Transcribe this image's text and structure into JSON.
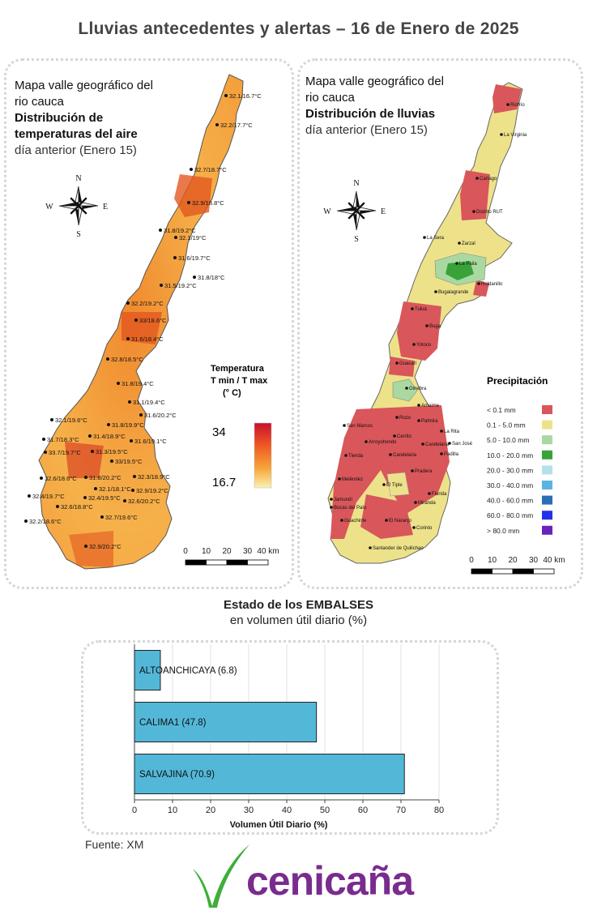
{
  "title": "Lluvias antecedentes y alertas – 16 de Enero de 2025",
  "left_panel": {
    "line1": "Mapa valle geográfico del",
    "line2": "rio cauca",
    "line3": "Distribución de",
    "line4": "temperaturas del aire",
    "line5": "día anterior (Enero 15)",
    "legend_title1": "Temperatura",
    "legend_title2": "T min / T max",
    "legend_title3": "(° C)",
    "legend_max": "34",
    "legend_min": "16.7",
    "scale_labels": [
      "0",
      "10",
      "20",
      "30",
      "40 km"
    ],
    "stations": [
      "32.1/16.7°C",
      "32.2/17.7°C",
      "32.7/18.7°C",
      "32.9/18.8°C",
      "31.8/19.2°C",
      "32.1/19°C",
      "31.6/19.7°C",
      "31.8/18°C",
      "31.5/19.2°C",
      "32.2/19.2°C",
      "33/18.6°C",
      "31.6/18.4°C",
      "32.8/18.5°C",
      "31.8/19.4°C",
      "31.1/19.4°C",
      "31.6/20.2°C",
      "32.1/19.6°C",
      "31.8/19.9°C",
      "31.7/18.3°C",
      "31.4/18.9°C",
      "31.6/19.1°C",
      "33.7/19.7°C",
      "31.3/19.5°C",
      "33/19.5°C",
      "32.6/18.6°C",
      "31.8/20.2°C",
      "32.3/18.9°C",
      "32.4/19.7°C",
      "32.1/18.1°C",
      "32.9/19.2°C",
      "32.6/18.8°C",
      "32.4/19.5°C",
      "32.6/20.2°C",
      "32.7/19.6°C",
      "32.2/18.6°C",
      "32.9/20.2°C"
    ]
  },
  "right_panel": {
    "line1": "Mapa valle geográfico del",
    "line2": "rio cauca",
    "line3": "Distribución de lluvias",
    "line4": "día anterior (Enero  15)",
    "legend_title": "Precipitación",
    "legend_items": [
      {
        "label": "< 0.1 mm",
        "color": "#d9565a"
      },
      {
        "label": "0.1 - 5.0 mm",
        "color": "#ede28a"
      },
      {
        "label": "5.0 - 10.0 mm",
        "color": "#a9d9a0"
      },
      {
        "label": "10.0 - 20.0 mm",
        "color": "#39a33a"
      },
      {
        "label": "20.0 - 30.0 mm",
        "color": "#b5e0ec"
      },
      {
        "label": "30.0 - 40.0 mm",
        "color": "#5bb3e4"
      },
      {
        "label": "40.0 - 60.0 mm",
        "color": "#2b6fb8"
      },
      {
        "label": "60.0 - 80.0 mm",
        "color": "#2531e6"
      },
      {
        "label": "> 80.0 mm",
        "color": "#6a22b8"
      }
    ],
    "scale_labels": [
      "0",
      "10",
      "20",
      "30",
      "40 km"
    ],
    "places": [
      "Riofrío",
      "La Virginia",
      "Cartago",
      "Distrito RUT",
      "La Sera",
      "Zarzal",
      "La Paila",
      "Roldanillo",
      "Bugalagrande",
      "Tuluá",
      "Buga",
      "Yotoco",
      "Guacarí",
      "Ginebra",
      "Amaime",
      "San Marcos",
      "Palmira",
      "La Rita",
      "Pradera",
      "San José",
      "Candelaria",
      "Florida",
      "Meléndez",
      "El Tiple",
      "Jamundí",
      "Bocas del Palo",
      "Guachinte",
      "Miranda",
      "Corinto",
      "Santander de Quilichao",
      "Rozo",
      "Cerrito",
      "Arroyohondo",
      "Candelaria",
      "Tienda",
      "El Naranjo",
      "Padilla"
    ]
  },
  "compass": {
    "n": "N",
    "s": "S",
    "e": "E",
    "w": "W"
  },
  "embalses": {
    "title": "Estado de los EMBALSES",
    "subtitle": "en volumen útil diario (%)"
  },
  "chart_data": {
    "type": "bar",
    "orientation": "horizontal",
    "categories": [
      "ALTOANCHICAYA",
      "CALIMA1",
      "SALVAJINA"
    ],
    "values": [
      6.8,
      47.8,
      70.9
    ],
    "bar_labels": [
      "ALTOANCHICAYA (6.8)",
      "CALIMA1 (47.8)",
      "SALVAJINA (70.9)"
    ],
    "xlabel": "Volumen Útil Diario (%)",
    "xlim": [
      0,
      80
    ],
    "xticks": [
      0,
      10,
      20,
      30,
      40,
      50,
      60,
      70,
      80
    ],
    "grid": true,
    "bar_color": "#53b8d8"
  },
  "source": "Fuente: XM",
  "brand": "cenicaña",
  "colors": {
    "brand_purple": "#7a2c8e",
    "brand_green": "#3fae3a"
  }
}
